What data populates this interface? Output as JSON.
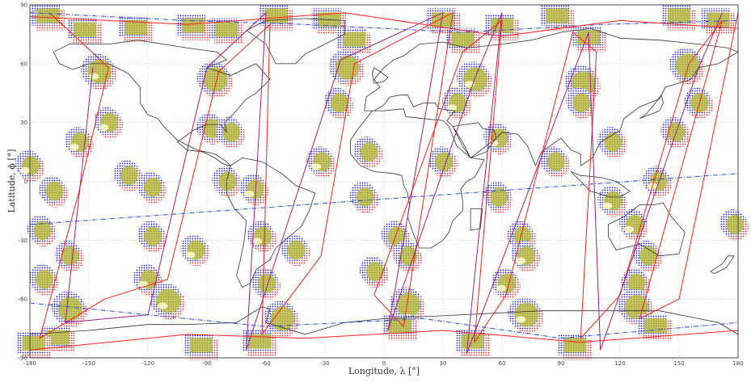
{
  "chart_data": {
    "type": "scatter",
    "xlabel": "Longitude, λ [°]",
    "ylabel": "Latitude, ϕ [°]",
    "xlim": [
      -180,
      180
    ],
    "ylim": [
      -90,
      90
    ],
    "x_ticks": [
      "-180",
      "-150",
      "-120",
      "-90",
      "-60",
      "-30",
      "0",
      "30",
      "60",
      "90",
      "120",
      "150",
      "180"
    ],
    "y_ticks": [
      "90",
      "60",
      "30",
      "0",
      "-30",
      "-60",
      "-90"
    ],
    "grid": true,
    "colors": {
      "footprint_blue": "#2020e0",
      "footprint_red": "#f03030",
      "footprint_yellow": "#e8e830",
      "overlap_olive": "#9a9a40",
      "ground_track_red": "#ff2020",
      "ground_track_purple": "#a02080",
      "dashed_track_blue": "#3050d0",
      "coastline": "#333333"
    },
    "footprints": [
      {
        "lon": -171,
        "lat": 84,
        "size": "large"
      },
      {
        "lon": -152,
        "lat": 77,
        "size": "large"
      },
      {
        "lon": -126,
        "lat": 78,
        "size": "large"
      },
      {
        "lon": -97,
        "lat": 79,
        "size": "large"
      },
      {
        "lon": -80,
        "lat": 77,
        "size": "large"
      },
      {
        "lon": -55,
        "lat": 84,
        "size": "large"
      },
      {
        "lon": -28,
        "lat": 82,
        "size": "large"
      },
      {
        "lon": -15,
        "lat": 72,
        "size": "large"
      },
      {
        "lon": 30,
        "lat": 82,
        "size": "large"
      },
      {
        "lon": 40,
        "lat": 72,
        "size": "large"
      },
      {
        "lon": 60,
        "lat": 79,
        "size": "large"
      },
      {
        "lon": 88,
        "lat": 84,
        "size": "large"
      },
      {
        "lon": 104,
        "lat": 73,
        "size": "large"
      },
      {
        "lon": 150,
        "lat": 84,
        "size": "large"
      },
      {
        "lon": 170,
        "lat": 82,
        "size": "large"
      },
      {
        "lon": -145,
        "lat": 56,
        "size": "large"
      },
      {
        "lon": -86,
        "lat": 52,
        "size": "large"
      },
      {
        "lon": -19,
        "lat": 58,
        "size": "large"
      },
      {
        "lon": 46,
        "lat": 52,
        "size": "large"
      },
      {
        "lon": 101,
        "lat": 50,
        "size": "large"
      },
      {
        "lon": 154,
        "lat": 59,
        "size": "large"
      },
      {
        "lon": -140,
        "lat": 30,
        "size": "medium"
      },
      {
        "lon": -88,
        "lat": 27,
        "size": "medium"
      },
      {
        "lon": -23,
        "lat": 40,
        "size": "medium"
      },
      {
        "lon": 37,
        "lat": 40,
        "size": "medium"
      },
      {
        "lon": 100,
        "lat": 40,
        "size": "medium"
      },
      {
        "lon": 160,
        "lat": 40,
        "size": "medium"
      },
      {
        "lon": -155,
        "lat": 20,
        "size": "medium"
      },
      {
        "lon": -78,
        "lat": 25,
        "size": "medium"
      },
      {
        "lon": -8,
        "lat": 15,
        "size": "medium"
      },
      {
        "lon": 58,
        "lat": 22,
        "size": "medium"
      },
      {
        "lon": 116,
        "lat": 20,
        "size": "medium"
      },
      {
        "lon": 148,
        "lat": 25,
        "size": "medium"
      },
      {
        "lon": -180,
        "lat": 8,
        "size": "medium"
      },
      {
        "lon": -130,
        "lat": 3,
        "size": "medium"
      },
      {
        "lon": -80,
        "lat": 0,
        "size": "medium"
      },
      {
        "lon": -32,
        "lat": 10,
        "size": "medium"
      },
      {
        "lon": 30,
        "lat": 10,
        "size": "medium"
      },
      {
        "lon": 87,
        "lat": 10,
        "size": "medium"
      },
      {
        "lon": 139,
        "lat": 0,
        "size": "medium"
      },
      {
        "lon": -168,
        "lat": -5,
        "size": "medium"
      },
      {
        "lon": -118,
        "lat": -3,
        "size": "medium"
      },
      {
        "lon": -66,
        "lat": -4,
        "size": "medium"
      },
      {
        "lon": -10,
        "lat": -8,
        "size": "medium"
      },
      {
        "lon": 58,
        "lat": -8,
        "size": "medium"
      },
      {
        "lon": 116,
        "lat": -10,
        "size": "medium"
      },
      {
        "lon": -174,
        "lat": -25,
        "size": "medium"
      },
      {
        "lon": -118,
        "lat": -28,
        "size": "medium"
      },
      {
        "lon": -62,
        "lat": -28,
        "size": "medium"
      },
      {
        "lon": 6,
        "lat": -28,
        "size": "medium"
      },
      {
        "lon": 70,
        "lat": -28,
        "size": "medium"
      },
      {
        "lon": 127,
        "lat": -22,
        "size": "medium"
      },
      {
        "lon": 178,
        "lat": -22,
        "size": "medium"
      },
      {
        "lon": -160,
        "lat": -38,
        "size": "medium"
      },
      {
        "lon": -96,
        "lat": -35,
        "size": "medium"
      },
      {
        "lon": -45,
        "lat": -35,
        "size": "medium"
      },
      {
        "lon": 12,
        "lat": -38,
        "size": "medium"
      },
      {
        "lon": 72,
        "lat": -38,
        "size": "medium"
      },
      {
        "lon": 134,
        "lat": -38,
        "size": "medium"
      },
      {
        "lon": -173,
        "lat": -50,
        "size": "medium"
      },
      {
        "lon": -120,
        "lat": -50,
        "size": "medium"
      },
      {
        "lon": -60,
        "lat": -52,
        "size": "medium"
      },
      {
        "lon": -5,
        "lat": -46,
        "size": "medium"
      },
      {
        "lon": 62,
        "lat": -52,
        "size": "medium"
      },
      {
        "lon": 128,
        "lat": -52,
        "size": "medium"
      },
      {
        "lon": -160,
        "lat": -65,
        "size": "large"
      },
      {
        "lon": -110,
        "lat": -61,
        "size": "large"
      },
      {
        "lon": -52,
        "lat": -70,
        "size": "large"
      },
      {
        "lon": 12,
        "lat": -63,
        "size": "large"
      },
      {
        "lon": 72,
        "lat": -68,
        "size": "large"
      },
      {
        "lon": 128,
        "lat": -64,
        "size": "large"
      },
      {
        "lon": -166,
        "lat": -80,
        "size": "large"
      },
      {
        "lon": -93,
        "lat": -84,
        "size": "large"
      },
      {
        "lon": -63,
        "lat": -82,
        "size": "large"
      },
      {
        "lon": 8,
        "lat": -74,
        "size": "large"
      },
      {
        "lon": 45,
        "lat": -82,
        "size": "large"
      },
      {
        "lon": 97,
        "lat": -84,
        "size": "large"
      },
      {
        "lon": 138,
        "lat": -74,
        "size": "large"
      },
      {
        "lon": -178,
        "lat": -83,
        "size": "large"
      }
    ],
    "ground_tracks": [
      {
        "style": "solid",
        "color": "ground_track_red",
        "points": [
          [
            -170,
            86
          ],
          [
            -140,
            58
          ],
          [
            -155,
            -5
          ],
          [
            -175,
            -80
          ],
          [
            -142,
            -60
          ],
          [
            -110,
            -50
          ],
          [
            -84,
            56
          ],
          [
            -58,
            80
          ],
          [
            -62,
            -78
          ],
          [
            -32,
            -38
          ],
          [
            -15,
            60
          ],
          [
            35,
            86
          ],
          [
            10,
            -74
          ],
          [
            -5,
            -58
          ],
          [
            40,
            66
          ],
          [
            60,
            82
          ],
          [
            46,
            -82
          ],
          [
            62,
            -58
          ],
          [
            96,
            76
          ],
          [
            108,
            66
          ],
          [
            100,
            -80
          ],
          [
            120,
            -58
          ],
          [
            155,
            60
          ],
          [
            172,
            82
          ],
          [
            130,
            -70
          ],
          [
            150,
            -60
          ],
          [
            180,
            86
          ]
        ]
      },
      {
        "style": "solid",
        "color": "ground_track_purple",
        "points": [
          [
            -148,
            58
          ],
          [
            -162,
            -72
          ],
          [
            -120,
            -68
          ],
          [
            -90,
            58
          ],
          [
            -60,
            86
          ],
          [
            -70,
            -86
          ],
          [
            -22,
            62
          ],
          [
            30,
            86
          ],
          [
            2,
            -76
          ],
          [
            46,
            52
          ],
          [
            60,
            86
          ],
          [
            42,
            -88
          ],
          [
            104,
            76
          ],
          [
            110,
            -86
          ],
          [
            160,
            58
          ],
          [
            172,
            86
          ]
        ]
      },
      {
        "style": "dashdot",
        "color": "dashed_track_blue",
        "points": [
          [
            -180,
            -22
          ],
          [
            180,
            4
          ]
        ]
      },
      {
        "style": "dashdot",
        "color": "dashed_track_blue",
        "points": [
          [
            -180,
            86
          ],
          [
            -100,
            82
          ],
          [
            -40,
            80
          ],
          [
            40,
            76
          ],
          [
            110,
            80
          ],
          [
            180,
            82
          ]
        ]
      },
      {
        "style": "dashdot",
        "color": "dashed_track_blue",
        "points": [
          [
            -180,
            -62
          ],
          [
            -60,
            -74
          ],
          [
            20,
            -70
          ],
          [
            90,
            -80
          ],
          [
            180,
            -72
          ]
        ]
      },
      {
        "style": "solid",
        "color": "ground_track_red",
        "points": [
          [
            -180,
            -86
          ],
          [
            -100,
            -78
          ],
          [
            -40,
            -80
          ],
          [
            30,
            -76
          ],
          [
            100,
            -82
          ],
          [
            180,
            -76
          ]
        ]
      },
      {
        "style": "solid",
        "color": "ground_track_red",
        "points": [
          [
            -180,
            84
          ],
          [
            -100,
            80
          ],
          [
            -20,
            86
          ],
          [
            60,
            74
          ],
          [
            120,
            82
          ],
          [
            180,
            78
          ]
        ]
      }
    ]
  }
}
